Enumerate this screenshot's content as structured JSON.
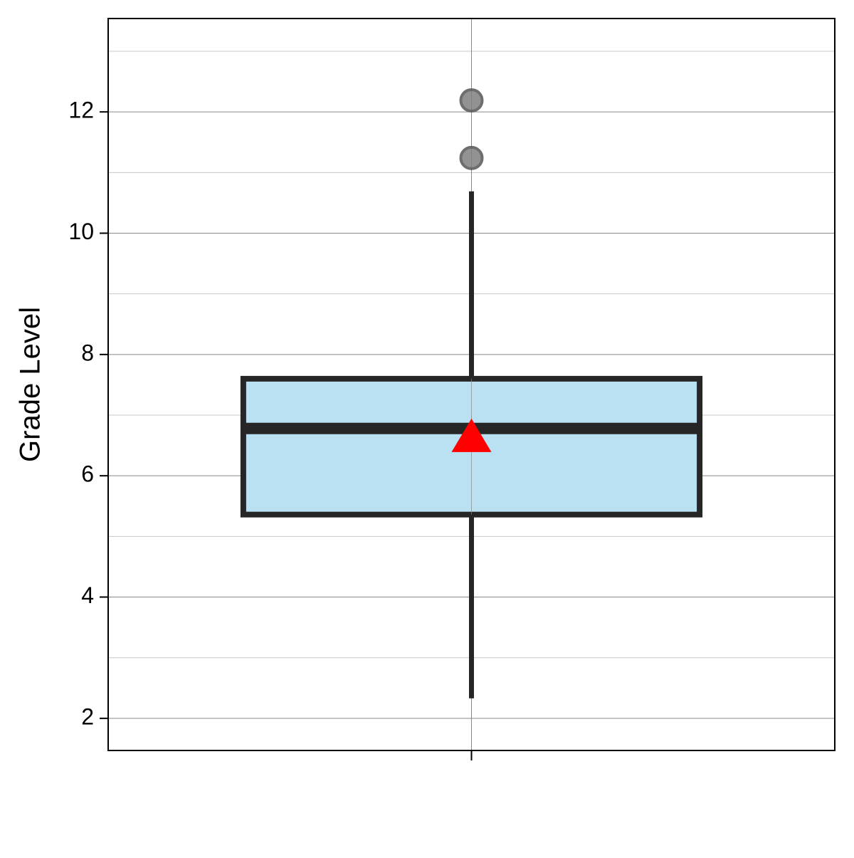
{
  "chart_data": {
    "type": "box",
    "y_label": "Grade Level",
    "boxes": [
      {
        "whisker_low": 2.33,
        "q1": 5.36,
        "median": 6.78,
        "q3": 7.6,
        "whisker_high": 10.69,
        "mean": 6.65,
        "outliers": [
          11.24,
          12.19
        ]
      }
    ],
    "box_color": "#bae1f1",
    "edge_color": "#262626",
    "mean_color": "#ff0000",
    "outlier_color": "#808080",
    "ylim": [
      1.47,
      13.54
    ],
    "yticks": [
      2,
      4,
      6,
      8,
      10,
      12
    ],
    "yminor": [
      3,
      5,
      7,
      9,
      11,
      13
    ],
    "grid": true
  }
}
